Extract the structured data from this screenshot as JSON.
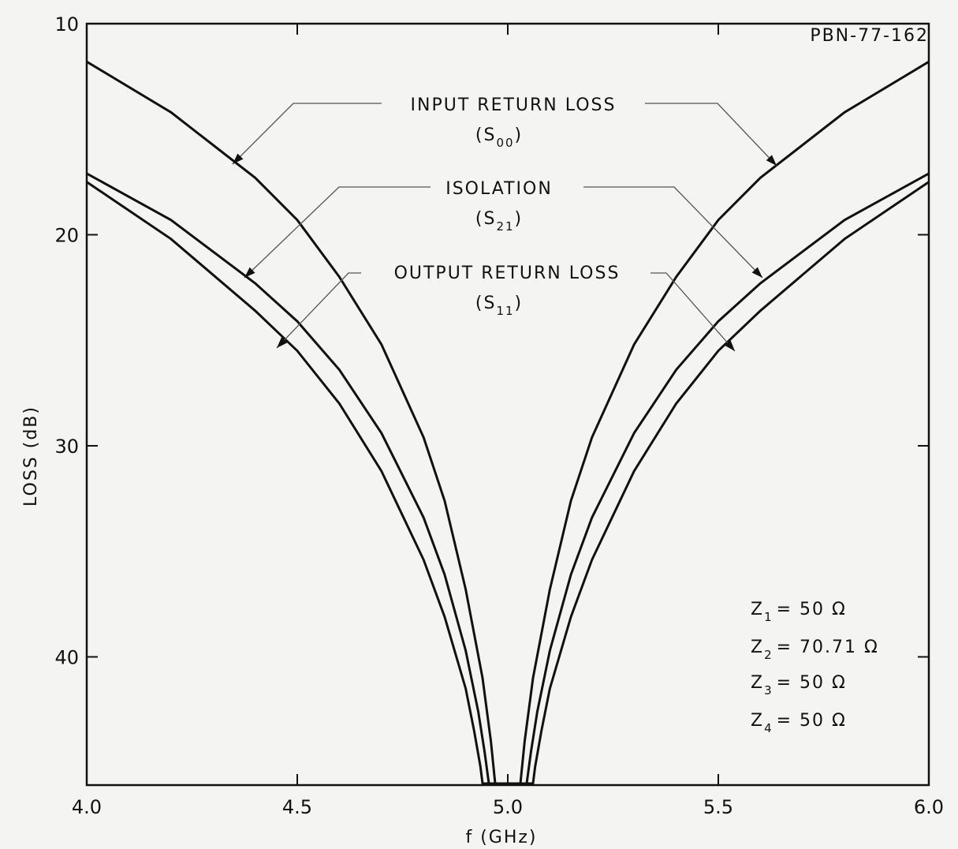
{
  "document_id": "PBN-77-162",
  "chart_data": {
    "type": "line",
    "xlabel": "f (GHz)",
    "ylabel": "LOSS (dB)",
    "xlim": [
      4.0,
      6.0
    ],
    "ylim": [
      10,
      46
    ],
    "y_inverted": true,
    "x_ticks": [
      "4.0",
      "4.5",
      "5.0",
      "5.5",
      "6.0"
    ],
    "x_tick_values": [
      4.0,
      4.5,
      5.0,
      5.5,
      6.0
    ],
    "y_ticks": [
      "10",
      "20",
      "30",
      "40"
    ],
    "y_tick_values": [
      10,
      20,
      30,
      40
    ],
    "grid": false,
    "series": [
      {
        "name": "INPUT RETURN LOSS",
        "subscript_label": "(S00)",
        "x": [
          4.0,
          4.2,
          4.4,
          4.5,
          4.6,
          4.7,
          4.8,
          4.85,
          4.9,
          4.94,
          4.96,
          4.97,
          5.03,
          5.04,
          5.06,
          5.1,
          5.15,
          5.2,
          5.3,
          5.4,
          5.5,
          5.6,
          5.8,
          6.0
        ],
        "values": [
          11.8,
          14.2,
          17.3,
          19.3,
          22.0,
          25.2,
          29.6,
          32.6,
          36.8,
          41.0,
          44.0,
          46.0,
          46.0,
          44.0,
          41.0,
          36.8,
          32.6,
          29.6,
          25.2,
          22.0,
          19.3,
          17.3,
          14.2,
          11.8
        ]
      },
      {
        "name": "ISOLATION",
        "subscript_label": "(S21)",
        "x": [
          4.0,
          4.2,
          4.4,
          4.5,
          4.6,
          4.7,
          4.8,
          4.85,
          4.9,
          4.93,
          4.945,
          4.955,
          5.045,
          5.055,
          5.07,
          5.1,
          5.15,
          5.2,
          5.3,
          5.4,
          5.5,
          5.6,
          5.8,
          6.0
        ],
        "values": [
          17.1,
          19.3,
          22.3,
          24.1,
          26.4,
          29.4,
          33.4,
          36.1,
          39.7,
          42.6,
          44.5,
          46.0,
          46.0,
          44.5,
          42.6,
          39.7,
          36.1,
          33.4,
          29.4,
          26.4,
          24.1,
          22.3,
          19.3,
          17.1
        ]
      },
      {
        "name": "OUTPUT RETURN LOSS",
        "subscript_label": "(S11)",
        "x": [
          4.0,
          4.2,
          4.4,
          4.5,
          4.6,
          4.7,
          4.8,
          4.85,
          4.9,
          4.92,
          4.935,
          4.94,
          5.06,
          5.065,
          5.08,
          5.1,
          5.15,
          5.2,
          5.3,
          5.4,
          5.5,
          5.6,
          5.8,
          6.0
        ],
        "values": [
          17.5,
          20.2,
          23.6,
          25.5,
          28.0,
          31.2,
          35.4,
          38.1,
          41.5,
          43.5,
          45.2,
          46.0,
          46.0,
          45.2,
          43.5,
          41.5,
          38.1,
          35.4,
          31.2,
          28.0,
          25.5,
          23.6,
          20.2,
          17.5
        ]
      }
    ],
    "annotations": [
      {
        "main": "Z",
        "sub": "1",
        "value": "= 50 Ω"
      },
      {
        "main": "Z",
        "sub": "2",
        "value": "= 70.71 Ω"
      },
      {
        "main": "Z",
        "sub": "3",
        "value": "= 50 Ω"
      },
      {
        "main": "Z",
        "sub": "4",
        "value": "= 50 Ω"
      }
    ]
  }
}
